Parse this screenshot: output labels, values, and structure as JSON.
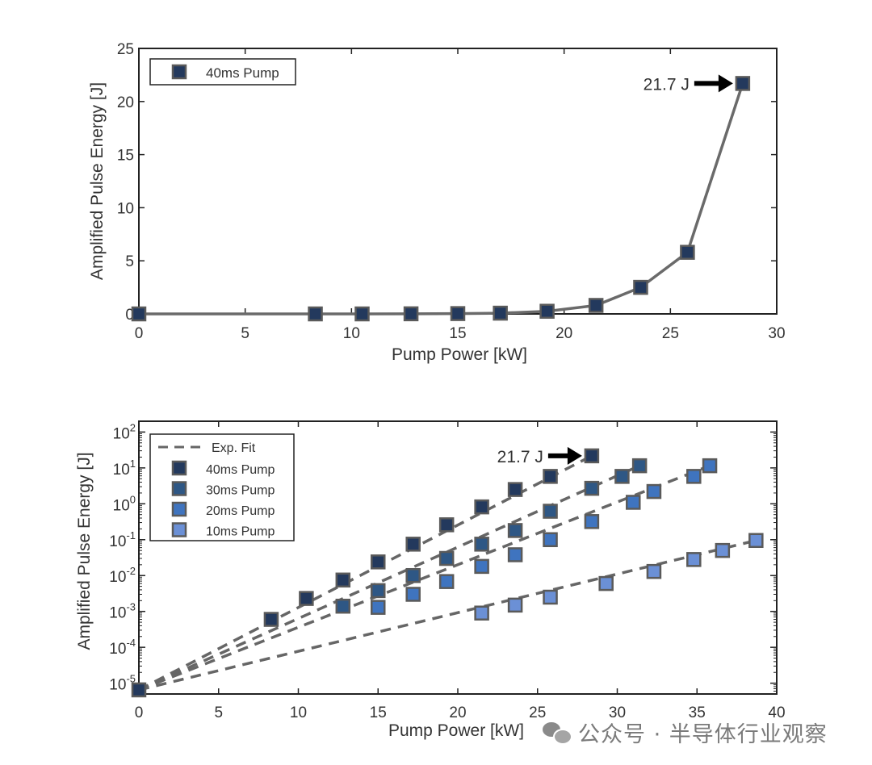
{
  "chart_data": [
    {
      "type": "line",
      "xlabel": "Pump Power [kW]",
      "ylabel": "Amplified Pulse Energy [J]",
      "xlim": [
        0,
        30
      ],
      "ylim": [
        0,
        25
      ],
      "xticks": [
        0,
        5,
        10,
        15,
        20,
        25,
        30
      ],
      "yticks": [
        0,
        5,
        10,
        15,
        20,
        25
      ],
      "xtick_labels": [
        "0",
        "5",
        "10",
        "15",
        "20",
        "25",
        "30"
      ],
      "ytick_labels": [
        "0",
        "5",
        "10",
        "15",
        "20",
        "25"
      ],
      "legend_position": "top-left",
      "grid": false,
      "series": [
        {
          "name": "40ms Pump",
          "color": "#23395d",
          "x": [
            0,
            8.3,
            10.5,
            12.8,
            15.0,
            17.0,
            19.2,
            21.5,
            23.6,
            25.8,
            28.4
          ],
          "y": [
            0.0,
            0.0,
            0.0,
            0.01,
            0.03,
            0.07,
            0.25,
            0.8,
            2.5,
            5.8,
            21.7
          ]
        }
      ],
      "annotation": {
        "text": "21.7 J",
        "x": 28.4,
        "y": 21.7
      }
    },
    {
      "type": "scatter",
      "yscale": "log",
      "xlabel": "Pump Power [kW]",
      "ylabel": "Amplified Pulse Energy [J]",
      "xlim": [
        0,
        40
      ],
      "ylim": [
        5e-06,
        200
      ],
      "xticks": [
        0,
        5,
        10,
        15,
        20,
        25,
        30,
        35,
        40
      ],
      "xtick_labels": [
        "0",
        "5",
        "10",
        "15",
        "20",
        "25",
        "30",
        "35",
        "40"
      ],
      "yticks": [
        1e-05,
        0.0001,
        0.001,
        0.01,
        0.1,
        1,
        10,
        100
      ],
      "ytick_base": [
        "10",
        "10",
        "10",
        "10",
        "10",
        "10",
        "10",
        "10"
      ],
      "ytick_exp": [
        "-5",
        "-4",
        "-3",
        "-2",
        "-1",
        "0",
        "1",
        "2"
      ],
      "legend_position": "top-left",
      "grid": false,
      "fit_legend": "Exp. Fit",
      "fit_color": "#666666",
      "origin": {
        "x": 0,
        "y": 6.5e-06
      },
      "series": [
        {
          "name": "40ms Pump",
          "color": "#23395d",
          "x": [
            8.3,
            10.5,
            12.8,
            15.0,
            17.2,
            19.3,
            21.5,
            23.6,
            25.8,
            28.4
          ],
          "y": [
            0.0006,
            0.0023,
            0.0075,
            0.024,
            0.075,
            0.26,
            0.82,
            2.5,
            5.8,
            21.7
          ],
          "fit_end": {
            "x": 28.4,
            "y": 21.7
          }
        },
        {
          "name": "30ms Pump",
          "color": "#2e5785",
          "x": [
            12.8,
            15.0,
            17.2,
            19.3,
            21.5,
            23.6,
            25.8,
            28.4,
            30.3,
            31.4
          ],
          "y": [
            0.0014,
            0.0038,
            0.01,
            0.03,
            0.075,
            0.18,
            0.62,
            2.7,
            5.8,
            11.5
          ],
          "fit_end": {
            "x": 31.4,
            "y": 11.5
          }
        },
        {
          "name": "20ms Pump",
          "color": "#3f74bf",
          "x": [
            15.0,
            17.2,
            19.3,
            21.5,
            23.6,
            25.8,
            28.4,
            31.0,
            32.3,
            34.8,
            35.8
          ],
          "y": [
            0.0013,
            0.003,
            0.0068,
            0.018,
            0.038,
            0.1,
            0.32,
            1.1,
            2.2,
            5.8,
            11.5
          ],
          "fit_end": {
            "x": 35.8,
            "y": 11.5
          }
        },
        {
          "name": "10ms Pump",
          "color": "#6b90d6",
          "x": [
            21.5,
            23.6,
            25.8,
            29.3,
            32.3,
            34.8,
            36.6,
            38.7
          ],
          "y": [
            0.0009,
            0.0015,
            0.0025,
            0.006,
            0.013,
            0.028,
            0.05,
            0.095
          ],
          "fit_end": {
            "x": 38.7,
            "y": 0.095
          }
        }
      ],
      "annotation": {
        "text": "21.7 J",
        "x": 28.4,
        "y": 21.7
      }
    }
  ],
  "watermark": {
    "text": "公众号 · 半导体行业观察"
  }
}
